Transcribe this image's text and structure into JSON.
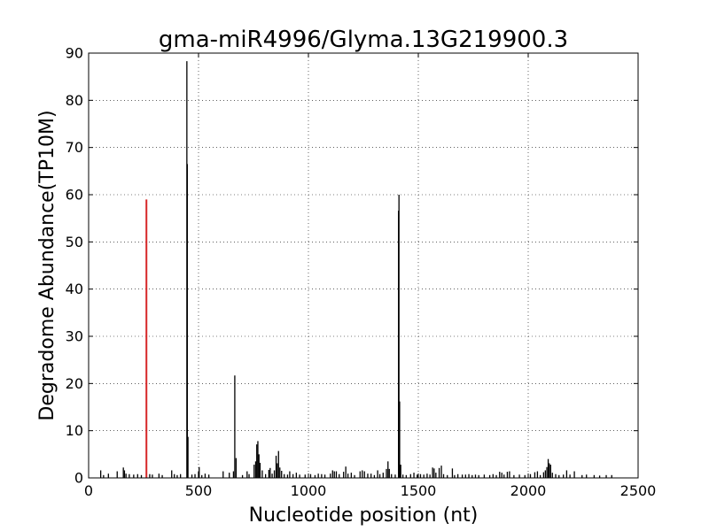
{
  "chart_data": {
    "type": "bar",
    "title": "gma-miR4996/Glyma.13G219900.3",
    "xlabel": "Nucleotide position (nt)",
    "ylabel": "Degradome Abundance(TP10M)",
    "xlim": [
      0,
      2500
    ],
    "ylim": [
      0,
      90
    ],
    "xticks": [
      0,
      500,
      1000,
      1500,
      2000,
      2500
    ],
    "yticks": [
      0,
      10,
      20,
      30,
      40,
      50,
      60,
      70,
      80,
      90
    ],
    "grid": true,
    "bar_color": "#000000",
    "highlight_color": "#d62728",
    "highlight": {
      "x": 263,
      "y": 59
    },
    "points": [
      [
        55,
        1.6
      ],
      [
        68,
        0.6
      ],
      [
        90,
        0.9
      ],
      [
        130,
        1.4
      ],
      [
        158,
        2.2
      ],
      [
        163,
        1.6
      ],
      [
        170,
        0.9
      ],
      [
        185,
        0.8
      ],
      [
        205,
        0.7
      ],
      [
        223,
        0.8
      ],
      [
        240,
        0.6
      ],
      [
        278,
        0.8
      ],
      [
        290,
        0.7
      ],
      [
        320,
        0.9
      ],
      [
        335,
        0.6
      ],
      [
        378,
        1.6
      ],
      [
        390,
        0.8
      ],
      [
        403,
        0.6
      ],
      [
        418,
        0.8
      ],
      [
        447,
        88.3
      ],
      [
        449,
        66.5
      ],
      [
        452,
        8.7
      ],
      [
        470,
        0.7
      ],
      [
        484,
        0.8
      ],
      [
        500,
        1.3
      ],
      [
        503,
        2.3
      ],
      [
        515,
        0.6
      ],
      [
        530,
        0.9
      ],
      [
        547,
        0.7
      ],
      [
        612,
        1.4
      ],
      [
        640,
        1.1
      ],
      [
        659,
        1.4
      ],
      [
        665,
        21.7
      ],
      [
        671,
        4.2
      ],
      [
        700,
        0.6
      ],
      [
        721,
        1.4
      ],
      [
        730,
        0.8
      ],
      [
        753,
        2.8
      ],
      [
        760,
        3.5
      ],
      [
        765,
        7.1
      ],
      [
        770,
        7.8
      ],
      [
        775,
        5.0
      ],
      [
        780,
        3.2
      ],
      [
        790,
        1.6
      ],
      [
        805,
        0.8
      ],
      [
        820,
        1.7
      ],
      [
        826,
        2.1
      ],
      [
        835,
        0.9
      ],
      [
        845,
        1.6
      ],
      [
        853,
        4.7
      ],
      [
        858,
        3.1
      ],
      [
        864,
        5.7
      ],
      [
        870,
        2.2
      ],
      [
        878,
        1.5
      ],
      [
        890,
        0.8
      ],
      [
        905,
        0.7
      ],
      [
        915,
        1.4
      ],
      [
        930,
        0.8
      ],
      [
        945,
        1.1
      ],
      [
        960,
        0.7
      ],
      [
        985,
        0.7
      ],
      [
        1010,
        0.8
      ],
      [
        1030,
        0.6
      ],
      [
        1045,
        0.9
      ],
      [
        1060,
        0.8
      ],
      [
        1075,
        0.7
      ],
      [
        1100,
        0.9
      ],
      [
        1110,
        1.6
      ],
      [
        1118,
        1.4
      ],
      [
        1127,
        1.4
      ],
      [
        1140,
        0.8
      ],
      [
        1160,
        1.3
      ],
      [
        1170,
        2.4
      ],
      [
        1180,
        0.9
      ],
      [
        1195,
        1.1
      ],
      [
        1210,
        0.6
      ],
      [
        1235,
        1.4
      ],
      [
        1245,
        1.6
      ],
      [
        1255,
        1.4
      ],
      [
        1270,
        0.9
      ],
      [
        1285,
        0.9
      ],
      [
        1300,
        0.6
      ],
      [
        1315,
        1.6
      ],
      [
        1325,
        0.8
      ],
      [
        1340,
        1.1
      ],
      [
        1355,
        1.9
      ],
      [
        1362,
        3.5
      ],
      [
        1368,
        1.9
      ],
      [
        1378,
        0.8
      ],
      [
        1395,
        0.7
      ],
      [
        1410,
        56.6
      ],
      [
        1412,
        60.0
      ],
      [
        1415,
        16.2
      ],
      [
        1420,
        2.8
      ],
      [
        1430,
        0.7
      ],
      [
        1445,
        0.6
      ],
      [
        1465,
        0.8
      ],
      [
        1480,
        1.1
      ],
      [
        1495,
        0.7
      ],
      [
        1510,
        0.8
      ],
      [
        1525,
        0.7
      ],
      [
        1540,
        0.9
      ],
      [
        1553,
        0.7
      ],
      [
        1565,
        2.2
      ],
      [
        1572,
        2.0
      ],
      [
        1580,
        1.1
      ],
      [
        1595,
        2.1
      ],
      [
        1605,
        2.6
      ],
      [
        1615,
        0.8
      ],
      [
        1632,
        0.6
      ],
      [
        1655,
        2.0
      ],
      [
        1665,
        0.6
      ],
      [
        1680,
        0.8
      ],
      [
        1700,
        0.7
      ],
      [
        1715,
        0.7
      ],
      [
        1730,
        0.8
      ],
      [
        1745,
        0.6
      ],
      [
        1760,
        0.7
      ],
      [
        1775,
        0.6
      ],
      [
        1800,
        0.7
      ],
      [
        1825,
        0.6
      ],
      [
        1840,
        0.8
      ],
      [
        1855,
        0.6
      ],
      [
        1870,
        1.3
      ],
      [
        1880,
        1.1
      ],
      [
        1890,
        0.7
      ],
      [
        1905,
        1.3
      ],
      [
        1915,
        1.4
      ],
      [
        1935,
        0.6
      ],
      [
        1960,
        0.7
      ],
      [
        1985,
        0.6
      ],
      [
        2010,
        0.8
      ],
      [
        2030,
        1.2
      ],
      [
        2042,
        1.4
      ],
      [
        2055,
        0.6
      ],
      [
        2070,
        1.2
      ],
      [
        2078,
        1.6
      ],
      [
        2085,
        2.3
      ],
      [
        2091,
        4.0
      ],
      [
        2096,
        3.1
      ],
      [
        2102,
        2.8
      ],
      [
        2110,
        1.1
      ],
      [
        2125,
        0.8
      ],
      [
        2140,
        0.6
      ],
      [
        2160,
        0.7
      ],
      [
        2175,
        1.6
      ],
      [
        2190,
        0.7
      ],
      [
        2210,
        1.4
      ],
      [
        2245,
        0.6
      ],
      [
        2265,
        0.7
      ],
      [
        2300,
        0.6
      ],
      [
        2325,
        0.5
      ],
      [
        2355,
        0.6
      ],
      [
        2380,
        0.6
      ]
    ]
  }
}
